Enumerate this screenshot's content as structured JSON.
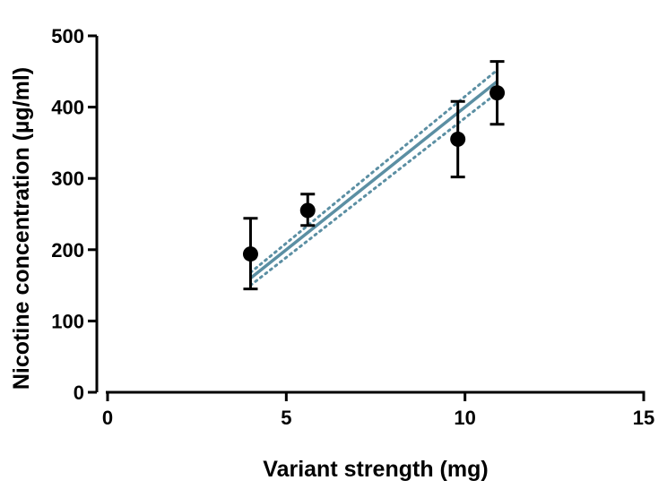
{
  "chart_data": {
    "type": "scatter",
    "xlabel": "Variant strength (mg)",
    "ylabel": "Nicotine concentration (µg/ml)",
    "xlim": [
      0,
      15
    ],
    "ylim": [
      0,
      500
    ],
    "xticks": [
      0,
      5,
      10,
      15
    ],
    "yticks": [
      0,
      100,
      200,
      300,
      400,
      500
    ],
    "grid": false,
    "points": [
      {
        "x": 4.0,
        "y": 194,
        "err_low": 145,
        "err_high": 244
      },
      {
        "x": 5.6,
        "y": 255,
        "err_low": 234,
        "err_high": 278
      },
      {
        "x": 9.8,
        "y": 355,
        "err_low": 302,
        "err_high": 408
      },
      {
        "x": 10.9,
        "y": 420,
        "err_low": 376,
        "err_high": 464
      }
    ],
    "fit_line": {
      "x": [
        4.0,
        10.9
      ],
      "y": [
        160,
        436
      ]
    },
    "confidence_band": {
      "upper": {
        "x": [
          4.0,
          10.9
        ],
        "y": [
          168,
          452
        ]
      },
      "lower": {
        "x": [
          4.0,
          10.9
        ],
        "y": [
          150,
          420
        ]
      }
    },
    "colors": {
      "points": "#000000",
      "fit": "#5b8fa3"
    }
  }
}
